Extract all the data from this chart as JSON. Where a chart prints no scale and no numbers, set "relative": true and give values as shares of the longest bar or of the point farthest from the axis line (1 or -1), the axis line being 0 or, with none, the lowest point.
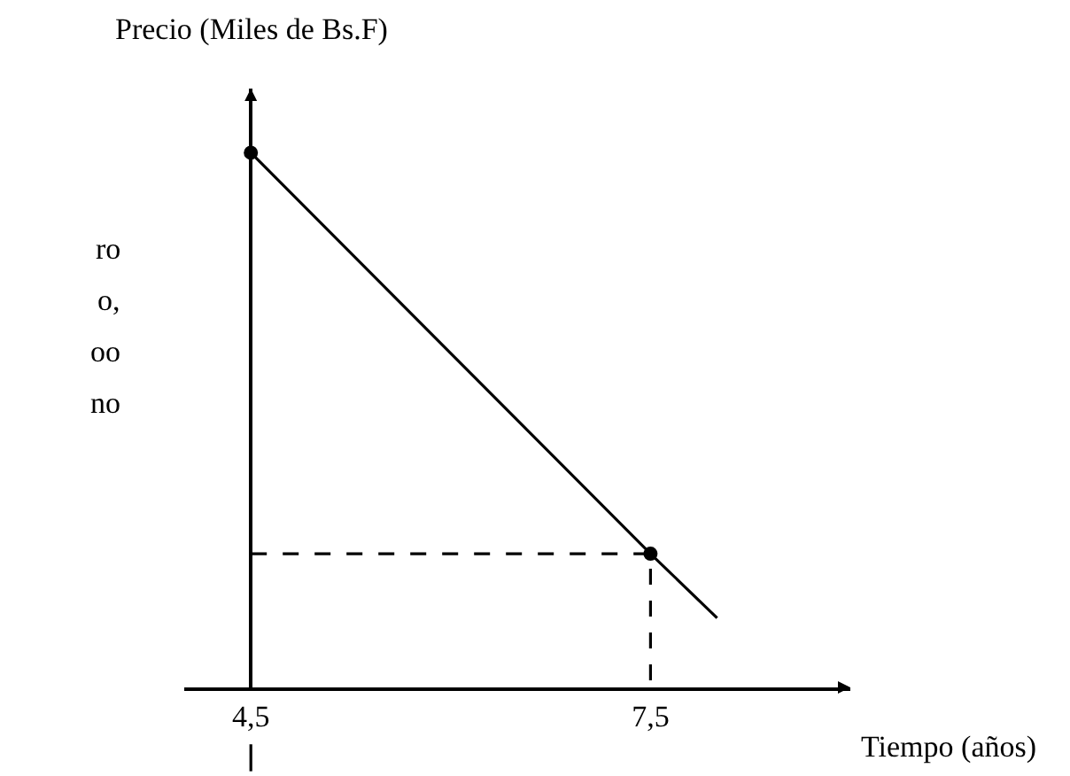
{
  "chart_data": {
    "type": "line",
    "relative": true,
    "xlabel": "Tiempo (años)",
    "ylabel": "Precio (Miles de Bs.F)",
    "xlim": [
      4.0,
      9.0
    ],
    "xticks": [
      {
        "value": 4.5,
        "label": "4,5"
      },
      {
        "value": 7.5,
        "label": "7,5"
      }
    ],
    "annotations": [
      "ro",
      "o,",
      "oo",
      "no"
    ],
    "series": [
      {
        "color": "#000000",
        "x": [
          4.5,
          7.5,
          8.0
        ],
        "values": [
          1,
          0.25,
          0.13
        ],
        "line_style": "solid",
        "marker": "none"
      },
      {
        "type": "scatter",
        "color": "#000000",
        "x": [
          4.5,
          7.5
        ],
        "values": [
          1,
          0.25
        ],
        "marker": "circle"
      },
      {
        "color": "#000000",
        "x": [
          4.5,
          7.5,
          7.5
        ],
        "values": [
          0.25,
          0.25,
          0
        ],
        "line_style": "dashed",
        "marker": "none"
      }
    ]
  }
}
